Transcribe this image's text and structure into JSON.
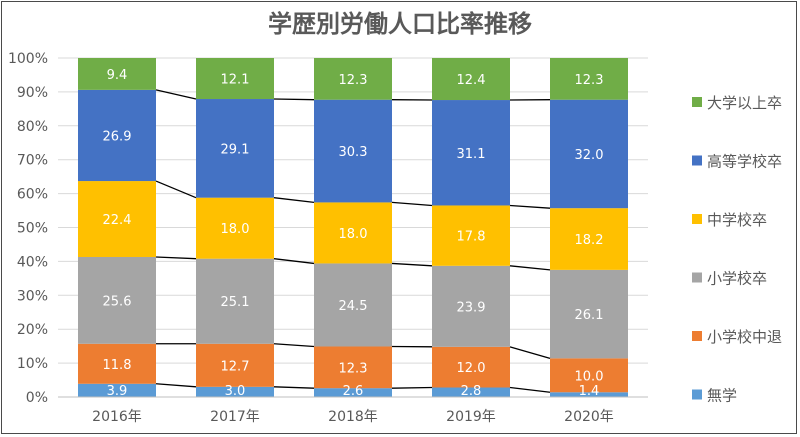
{
  "chart_data": {
    "type": "bar",
    "stacked": true,
    "title": "学歴別労働人口比率推移",
    "categories": [
      "2016年",
      "2017年",
      "2018年",
      "2019年",
      "2020年"
    ],
    "ylim": [
      0,
      100
    ],
    "yticks": [
      "0%",
      "10%",
      "20%",
      "30%",
      "40%",
      "50%",
      "60%",
      "70%",
      "80%",
      "90%",
      "100%"
    ],
    "grid": true,
    "legend_position": "right",
    "series_lines": true,
    "series": [
      {
        "name": "無学",
        "color": "#5B9BD5",
        "values": [
          3.9,
          3.0,
          2.6,
          2.8,
          1.4
        ]
      },
      {
        "name": "小学校中退",
        "color": "#ED7D31",
        "values": [
          11.8,
          12.7,
          12.3,
          12.0,
          10.0
        ]
      },
      {
        "name": "小学校卒",
        "color": "#A5A5A5",
        "values": [
          25.6,
          25.1,
          24.5,
          23.9,
          26.1
        ]
      },
      {
        "name": "中学校卒",
        "color": "#FFC000",
        "values": [
          22.4,
          18.0,
          18.0,
          17.8,
          18.2
        ]
      },
      {
        "name": "高等学校卒",
        "color": "#4472C4",
        "values": [
          26.9,
          29.1,
          30.3,
          31.1,
          32.0
        ]
      },
      {
        "name": "大学以上卒",
        "color": "#70AD47",
        "values": [
          9.4,
          12.1,
          12.3,
          12.4,
          12.3
        ]
      }
    ]
  }
}
